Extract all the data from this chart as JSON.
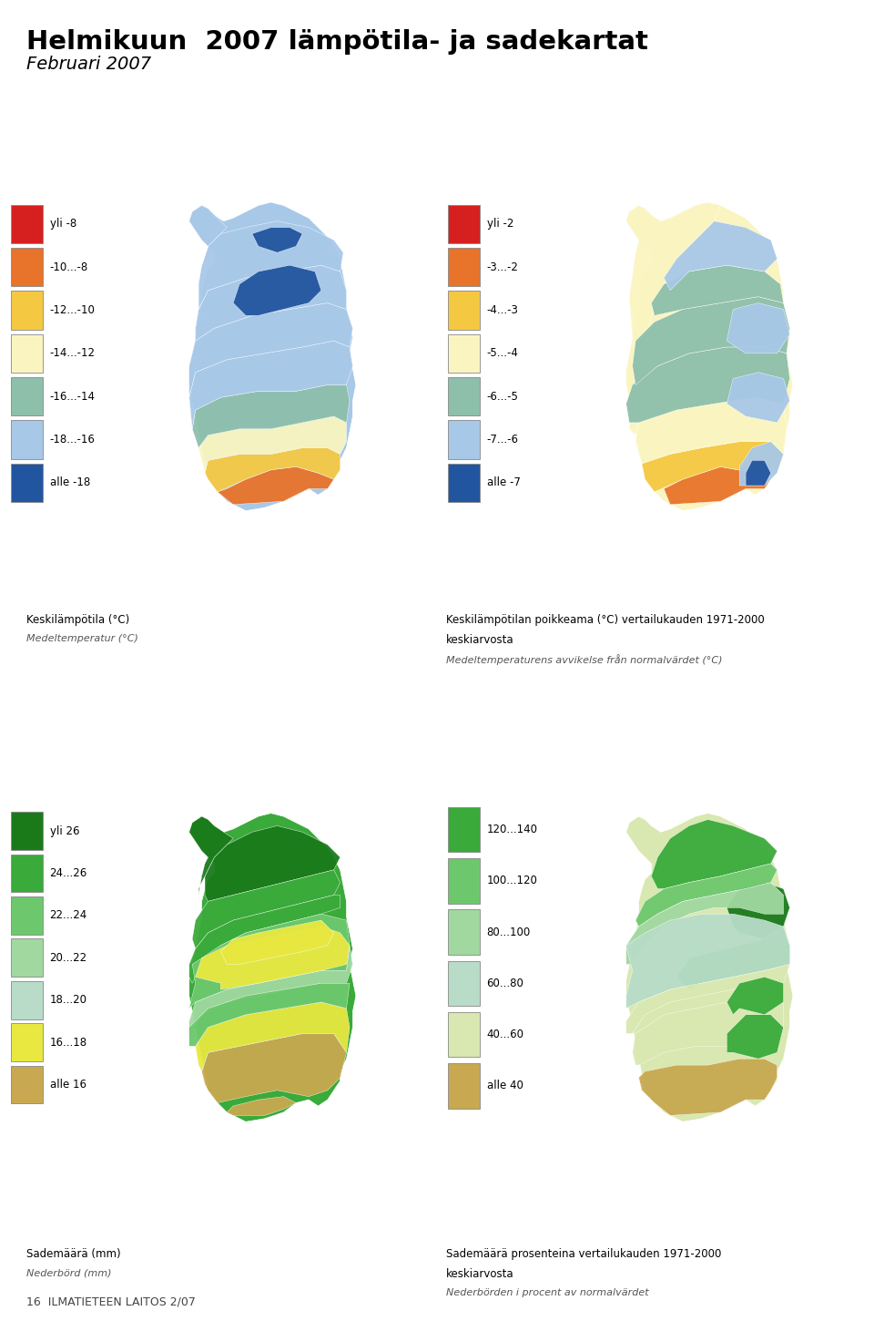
{
  "title_line1": "Helmikuun  2007 lämpötila- ja sadekartat",
  "title_line2": "Februari 2007",
  "footer": "16  ILMATIETEEN LAITOS 2/07",
  "map1_caption1": "Keskilämpötila (°C)",
  "map1_caption2": "Medeltemperatur (°C)",
  "map2_caption1": "Keskilämpötilan poikkeama (°C) vertailukauden 1971-2000",
  "map2_caption2": "keskiarvosta",
  "map2_caption3": "Medeltemperaturens avvikelse från normalvärdet (°C)",
  "map3_caption1": "Sademäärä (mm)",
  "map3_caption2": "Nederbörd (mm)",
  "map4_caption1": "Sademäärä prosenteina vertailukauden 1971-2000",
  "map4_caption2": "keskiarvosta",
  "map4_caption3": "Nederbörden i procent av normalvärdet",
  "legend1_colors": [
    "#d62020",
    "#e8732a",
    "#f5c842",
    "#faf5c0",
    "#8dbfab",
    "#a8c8e8",
    "#2255a0"
  ],
  "legend1_labels": [
    "yli -8",
    "-10...-8",
    "-12...-10",
    "-14...-12",
    "-16...-14",
    "-18...-16",
    "alle -18"
  ],
  "legend2_colors": [
    "#d62020",
    "#e8732a",
    "#f5c842",
    "#faf5c0",
    "#8dbfab",
    "#a8c8e8",
    "#2255a0"
  ],
  "legend2_labels": [
    "yli -2",
    "-3...-2",
    "-4...-3",
    "-5...-4",
    "-6...-5",
    "-7...-6",
    "alle -7"
  ],
  "legend3_colors": [
    "#1a7a1a",
    "#3aaa3a",
    "#6dc86d",
    "#a0d8a0",
    "#b8dcc8",
    "#e8e840",
    "#c8a850"
  ],
  "legend3_labels": [
    "yli 26",
    "24...26",
    "22...24",
    "20...22",
    "18...20",
    "16...18",
    "alle 16"
  ],
  "legend4_colors": [
    "#3aaa3a",
    "#6dc86d",
    "#a0d8a0",
    "#b8dcc8",
    "#d8e8b0",
    "#c8a850"
  ],
  "legend4_labels": [
    "120...140",
    "100...120",
    "80...100",
    "60...80",
    "40...60",
    "alle 40"
  ],
  "bg_color": "#ffffff"
}
